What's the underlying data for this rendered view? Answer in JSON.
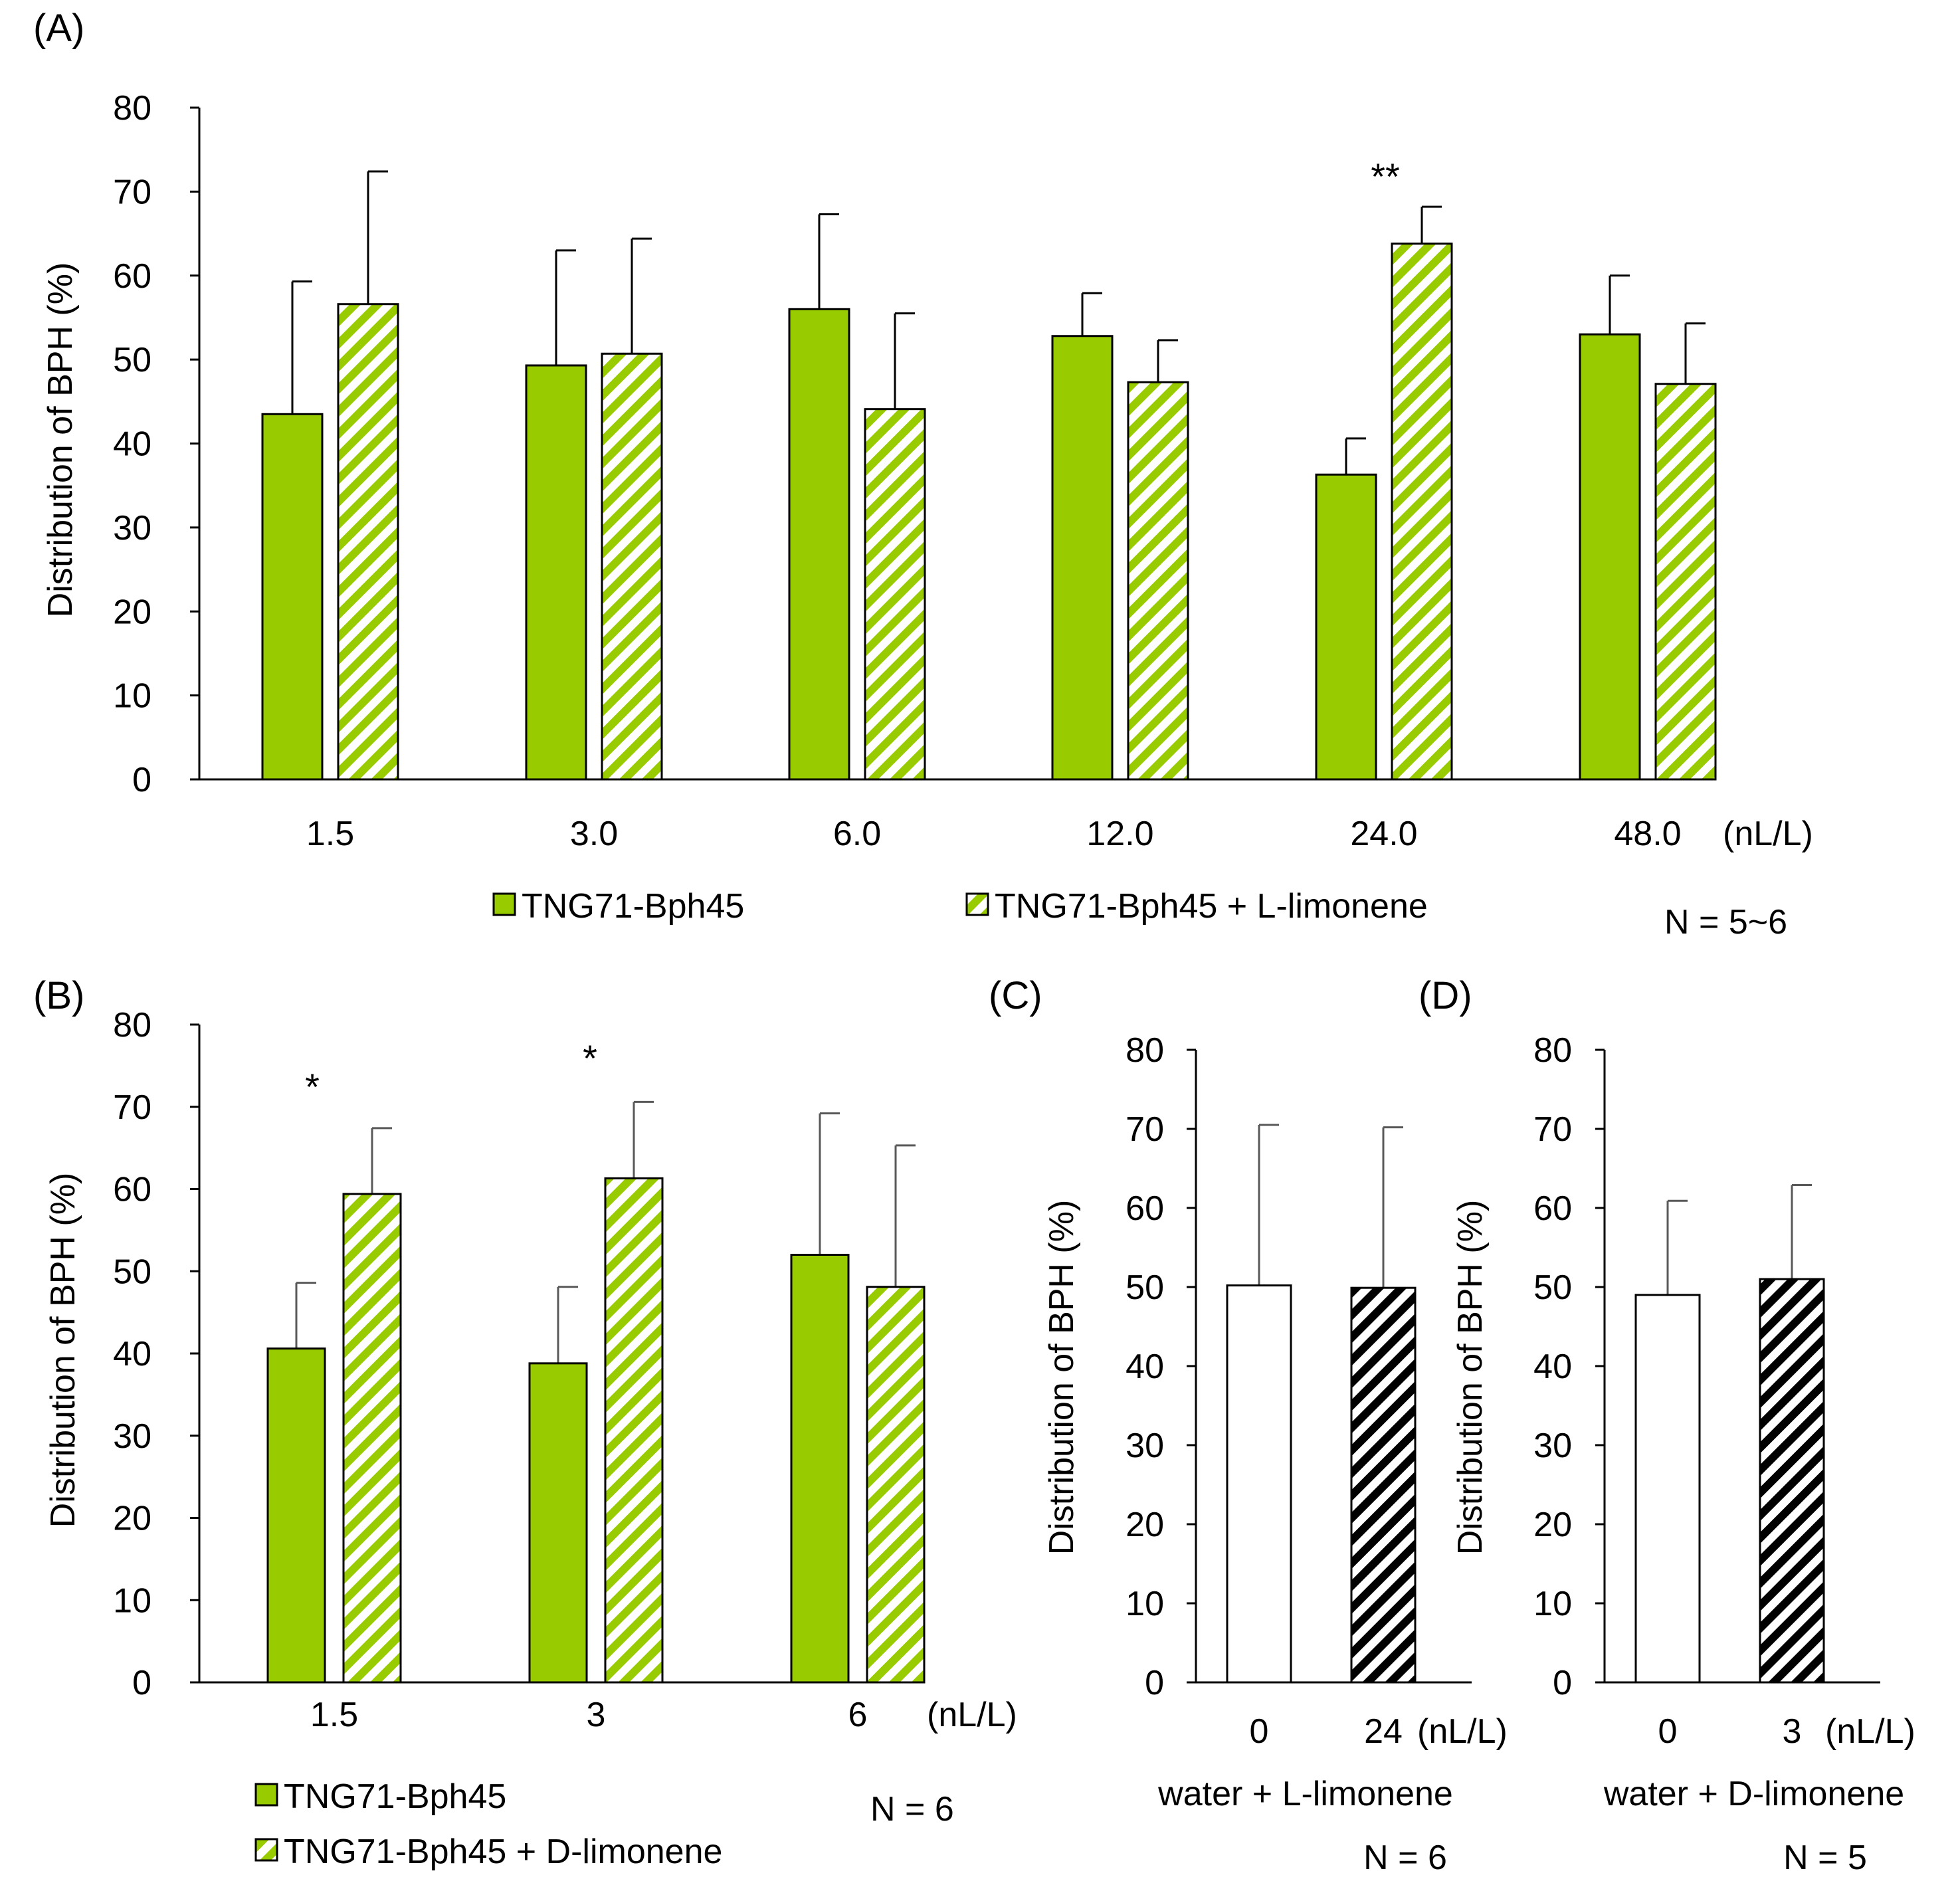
{
  "chart_data": [
    {
      "panel": "(A)",
      "type": "bar",
      "ylabel": "Distribution of BPH (%)",
      "ylim": [
        0,
        80
      ],
      "yticks": [
        "0",
        "10",
        "20",
        "30",
        "40",
        "50",
        "60",
        "70",
        "80"
      ],
      "categories": [
        "1.5",
        "3.0",
        "6.0",
        "12.0",
        "24.0",
        "48.0"
      ],
      "unit_label": "(nL/L)",
      "series": [
        {
          "name": "TNG71-Bph45",
          "values": [
            43.5,
            49.3,
            56.0,
            52.8,
            36.3,
            53.0
          ],
          "error": [
            15.8,
            13.7,
            11.3,
            5.1,
            4.3,
            7.0
          ],
          "fill": "solid"
        },
        {
          "name": "TNG71-Bph45 + L-limonene",
          "values": [
            56.6,
            50.7,
            44.1,
            47.3,
            63.8,
            47.1
          ],
          "error": [
            15.8,
            13.7,
            11.4,
            5.0,
            4.4,
            7.2
          ],
          "fill": "hatched"
        }
      ],
      "annotations": [
        {
          "category": "24.0",
          "text": "**"
        }
      ],
      "note": "N = 5~6"
    },
    {
      "panel": "(B)",
      "type": "bar",
      "ylabel": "Distribution of BPH (%)",
      "ylim": [
        0,
        80
      ],
      "yticks": [
        "0",
        "10",
        "20",
        "30",
        "40",
        "50",
        "60",
        "70",
        "80"
      ],
      "categories": [
        "1.5",
        "3",
        "6"
      ],
      "unit_label": "(nL/L)",
      "series": [
        {
          "name": "TNG71-Bph45",
          "values": [
            40.6,
            38.8,
            52.0
          ],
          "error": [
            8.0,
            9.3,
            17.2
          ],
          "fill": "solid"
        },
        {
          "name": "TNG71-Bph45 + D-limonene",
          "values": [
            59.4,
            61.3,
            48.1
          ],
          "error": [
            8.0,
            9.3,
            17.2
          ],
          "fill": "hatched"
        }
      ],
      "annotations": [
        {
          "category": "1.5",
          "text": "*"
        },
        {
          "category": "3",
          "text": "*"
        }
      ],
      "note": "N = 6"
    },
    {
      "panel": "(C)",
      "type": "bar",
      "ylabel": "Distribution of BPH (%)",
      "ylim": [
        0,
        80
      ],
      "yticks": [
        "0",
        "10",
        "20",
        "30",
        "40",
        "50",
        "60",
        "70",
        "80"
      ],
      "categories": [
        "0",
        "24"
      ],
      "unit_label": "(nL/L)",
      "values": [
        50.2,
        49.9
      ],
      "error": [
        20.3,
        20.3
      ],
      "fills": [
        "white",
        "hatched-black"
      ],
      "xlabel": "water + L-limonene",
      "note": "N = 6"
    },
    {
      "panel": "(D)",
      "type": "bar",
      "ylabel": "Distribution of BPH (%)",
      "ylim": [
        0,
        80
      ],
      "yticks": [
        "0",
        "10",
        "20",
        "30",
        "40",
        "50",
        "60",
        "70",
        "80"
      ],
      "categories": [
        "0",
        "3"
      ],
      "unit_label": "(nL/L)",
      "values": [
        49.0,
        51.0
      ],
      "error": [
        11.9,
        11.9
      ],
      "fills": [
        "white",
        "hatched-black"
      ],
      "xlabel": "water + D-limonene",
      "note": "N = 5"
    }
  ],
  "colors": {
    "green": "#99cc00",
    "hatch_green": "#99cc00",
    "hatch_black": "#000000",
    "white": "#ffffff",
    "axis": "#000000",
    "error_dark": "#000000",
    "error_gray": "#595959"
  }
}
